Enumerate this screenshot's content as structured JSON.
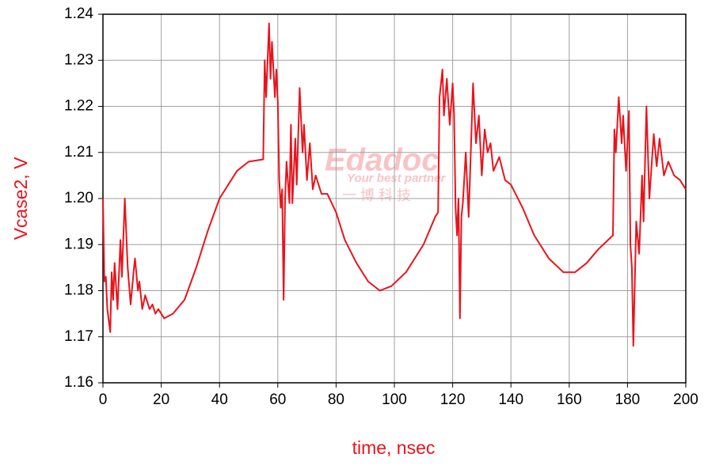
{
  "chart_data": {
    "type": "line",
    "xlabel": "time, nsec",
    "ylabel": "Vcase2, V",
    "watermark": {
      "logo": "Edadoc",
      "tagline": "Your best partner",
      "chinese": "一 博 科 技"
    },
    "x": [
      0,
      0.5,
      1,
      1.5,
      2.5,
      3,
      3.5,
      4,
      5,
      6,
      6.5,
      7.5,
      8.5,
      9.5,
      10.5,
      11,
      12,
      12.5,
      13.5,
      14.5,
      15,
      16,
      17,
      18,
      19,
      21,
      24,
      28,
      32,
      36,
      40,
      46,
      50,
      55,
      55.5,
      56,
      57,
      57.5,
      58,
      59,
      59.5,
      60,
      60.5,
      61,
      61.5,
      62,
      62.5,
      63,
      64,
      64.5,
      65,
      66,
      66.5,
      67.5,
      68.5,
      69,
      70,
      71,
      72,
      73,
      75,
      77,
      80,
      83,
      87,
      91,
      95,
      99,
      104,
      110,
      114,
      115,
      115.5,
      116.5,
      117,
      118,
      119,
      120,
      120.5,
      121,
      121.5,
      122,
      122.5,
      123,
      123.5,
      124.5,
      125.5,
      127,
      128,
      129,
      130,
      131,
      132,
      133,
      134,
      136,
      138,
      140,
      144,
      148,
      153,
      158,
      162,
      166,
      170,
      175,
      175.5,
      176,
      177,
      178,
      178.5,
      179.5,
      180.5,
      181,
      181.5,
      182,
      183,
      184,
      185,
      185.5,
      186.5,
      187.5,
      189,
      190,
      191,
      192.5,
      194,
      196,
      198,
      200
    ],
    "values": [
      1.2,
      1.182,
      1.183,
      1.176,
      1.171,
      1.184,
      1.178,
      1.186,
      1.176,
      1.191,
      1.183,
      1.2,
      1.185,
      1.177,
      1.184,
      1.187,
      1.18,
      1.182,
      1.176,
      1.179,
      1.178,
      1.176,
      1.177,
      1.175,
      1.176,
      1.174,
      1.175,
      1.178,
      1.185,
      1.193,
      1.2,
      1.206,
      1.208,
      1.2085,
      1.23,
      1.222,
      1.238,
      1.226,
      1.234,
      1.222,
      1.228,
      1.221,
      1.204,
      1.198,
      1.202,
      1.178,
      1.2,
      1.208,
      1.199,
      1.216,
      1.199,
      1.213,
      1.203,
      1.224,
      1.21,
      1.216,
      1.204,
      1.212,
      1.202,
      1.205,
      1.201,
      1.201,
      1.197,
      1.191,
      1.186,
      1.182,
      1.18,
      1.181,
      1.184,
      1.19,
      1.196,
      1.197,
      1.222,
      1.228,
      1.218,
      1.226,
      1.216,
      1.225,
      1.218,
      1.198,
      1.192,
      1.2,
      1.174,
      1.196,
      1.199,
      1.21,
      1.196,
      1.225,
      1.212,
      1.218,
      1.205,
      1.215,
      1.21,
      1.212,
      1.206,
      1.209,
      1.204,
      1.203,
      1.198,
      1.192,
      1.187,
      1.184,
      1.184,
      1.186,
      1.189,
      1.192,
      1.215,
      1.21,
      1.222,
      1.212,
      1.218,
      1.206,
      1.219,
      1.19,
      1.185,
      1.168,
      1.195,
      1.188,
      1.205,
      1.195,
      1.22,
      1.2,
      1.214,
      1.207,
      1.213,
      1.205,
      1.208,
      1.205,
      1.204,
      1.202
    ],
    "color": "#e8141c",
    "xlim": [
      0,
      200
    ],
    "xticks": [
      0,
      20,
      40,
      60,
      80,
      100,
      120,
      140,
      160,
      180,
      200
    ],
    "ylim": [
      1.16,
      1.24
    ],
    "yticks": [
      1.16,
      1.17,
      1.18,
      1.19,
      {
        "value": 1.2,
        "label": "1.20"
      },
      1.21,
      1.22,
      1.23,
      1.24
    ],
    "grid": true
  }
}
